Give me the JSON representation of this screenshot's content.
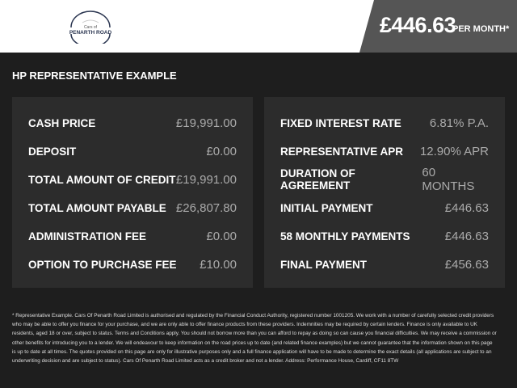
{
  "logo": {
    "line1": "Cars of",
    "line2": "PENARTH ROAD"
  },
  "header": {
    "price": "£446.63",
    "per_month": "PER MONTH*"
  },
  "title": "HP REPRESENTATIVE EXAMPLE",
  "left": [
    {
      "label": "CASH PRICE",
      "value": "£19,991.00"
    },
    {
      "label": "DEPOSIT",
      "value": "£0.00"
    },
    {
      "label": "TOTAL AMOUNT OF CREDIT",
      "value": "£19,991.00"
    },
    {
      "label": "TOTAL AMOUNT PAYABLE",
      "value": "£26,807.80"
    },
    {
      "label": "ADMINISTRATION FEE",
      "value": "£0.00"
    },
    {
      "label": "OPTION TO PURCHASE FEE",
      "value": "£10.00"
    }
  ],
  "right": [
    {
      "label": "FIXED INTEREST RATE",
      "value": "6.81% P.A."
    },
    {
      "label": "REPRESENTATIVE APR",
      "value": "12.90% APR"
    },
    {
      "label": "DURATION OF AGREEMENT",
      "value": "60 MONTHS"
    },
    {
      "label": "INITIAL PAYMENT",
      "value": "£446.63"
    },
    {
      "label": "58 MONTHLY PAYMENTS",
      "value": "£446.63"
    },
    {
      "label": "FINAL PAYMENT",
      "value": "£456.63"
    }
  ],
  "footnote": "* Representative Example. Cars Of Penarth Road Limited is authorised and regulated by the Financial Conduct Authority, registered number 1001205. We work with a number of carefully selected credit providers who may be able to offer you finance for your purchase, and we are only able to offer finance products from these providers. Indemnities may be required by certain lenders. Finance is only available to UK residents, aged 18 or over, subject to status. Terms and Conditions apply. You should not borrow more than you can afford to repay as doing so can cause you financial difficulties. We may receive a commission or other benefits for introducing you to a lender. We will endeavour to keep information on the road prices up to date (and related finance examples) but we cannot guarantee that the information shown on this page is up to date at all times. The quotes provided on this page are only for illustrative purposes only and a full finance application will have to be made to determine the exact details (all applications are subject to an underwriting decision and are subject to status). Cars Of Penarth Road Limited acts as a credit broker and not a lender. Address: Performance House, Cardiff, CF11 8TW"
}
